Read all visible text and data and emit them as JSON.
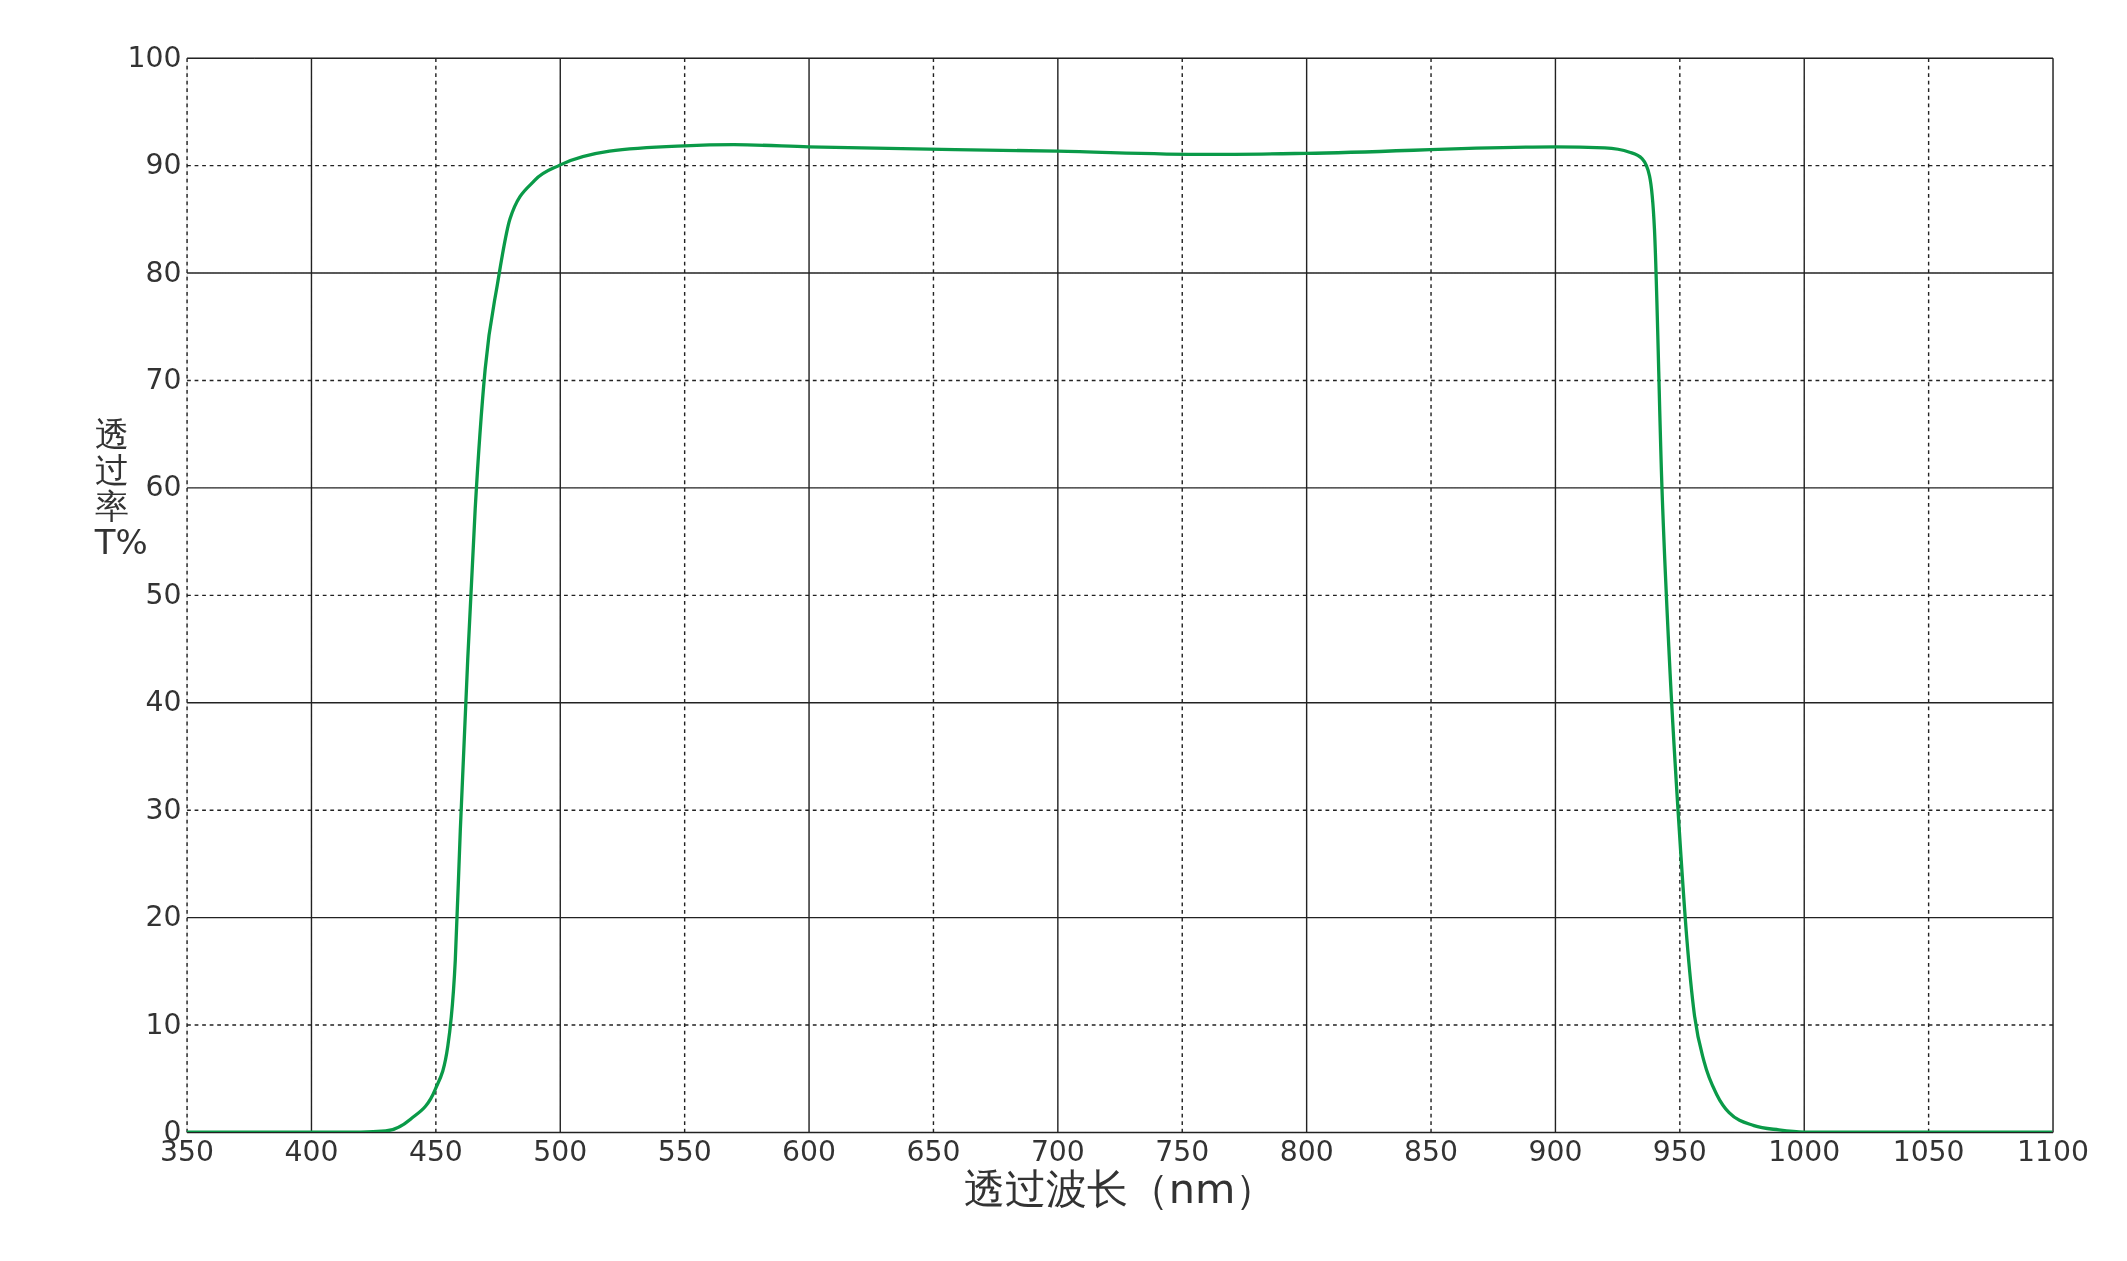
{
  "chart_data": {
    "type": "line",
    "xlabel": "透过波长（nm）",
    "ylabel": "透过率T%",
    "xlim": [
      350,
      1100
    ],
    "xticks": [
      350,
      400,
      450,
      500,
      550,
      600,
      650,
      700,
      750,
      800,
      850,
      900,
      950,
      1000,
      1050,
      1100
    ],
    "ylim": [
      0,
      100
    ],
    "yticks": [
      0,
      10,
      20,
      30,
      40,
      50,
      60,
      70,
      80,
      90,
      100
    ],
    "grid": true,
    "marker": "none",
    "line_style": "solid",
    "x": [
      350,
      400,
      420,
      430,
      440,
      450,
      455,
      458,
      460,
      463,
      466,
      470,
      475,
      480,
      490,
      500,
      520,
      550,
      570,
      600,
      700,
      760,
      800,
      900,
      920,
      930,
      935,
      938,
      940,
      943,
      946,
      950,
      953,
      956,
      960,
      965,
      970,
      980,
      990,
      1000,
      1050,
      1100
    ],
    "series": [
      {
        "color": "#0a9a48",
        "values": [
          0,
          0,
          0,
          0.1,
          1.2,
          4,
          8,
          16,
          28,
          44,
          58,
          71,
          79,
          85,
          88.6,
          90,
          91.3,
          91.8,
          91.9,
          91.7,
          91.3,
          91.0,
          91.1,
          91.7,
          91.6,
          91.2,
          90.6,
          89,
          84,
          60,
          44,
          28,
          18,
          11,
          6.5,
          3.5,
          1.8,
          0.6,
          0.2,
          0,
          0,
          0
        ]
      }
    ]
  }
}
